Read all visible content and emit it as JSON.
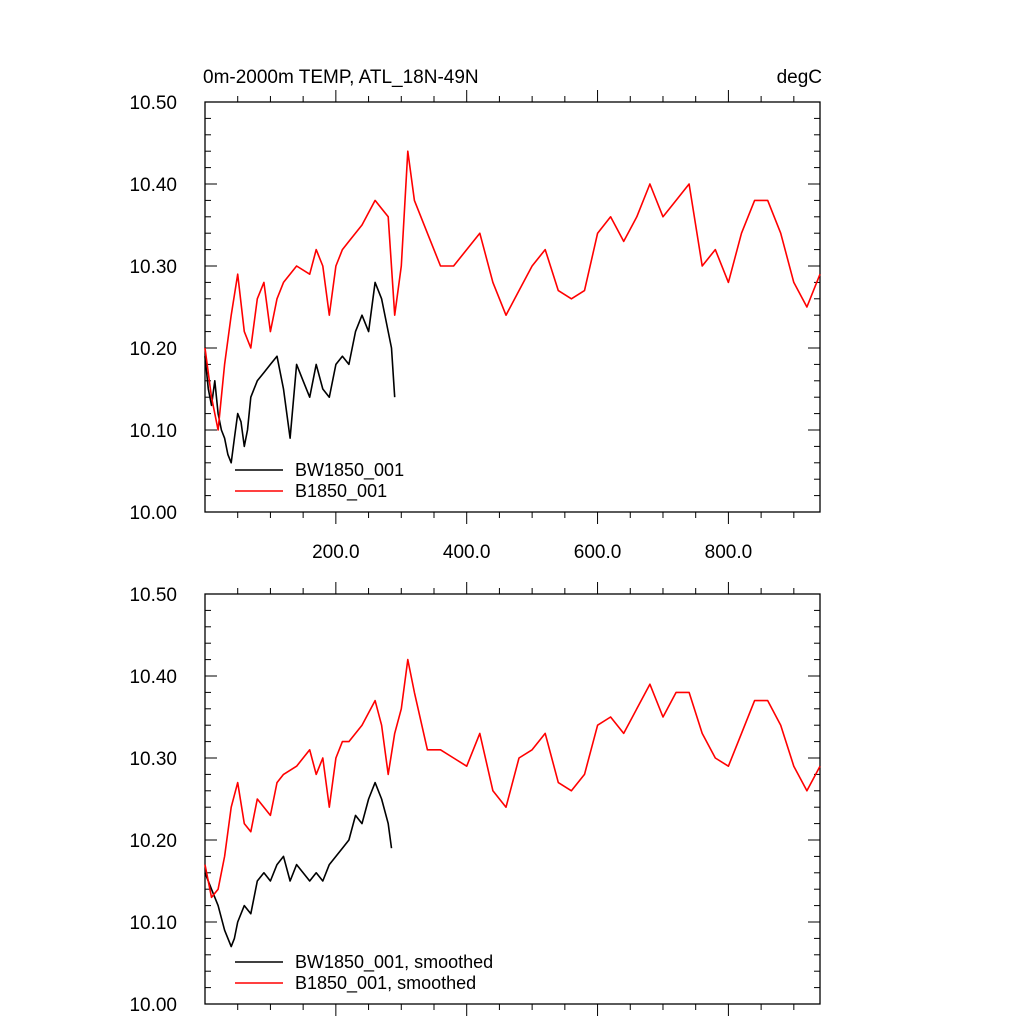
{
  "chart_data": [
    {
      "type": "line",
      "title": "0m-2000m TEMP, ATL_18N-49N",
      "units": "degC",
      "xlim": [
        0,
        940
      ],
      "ylim": [
        10.0,
        10.5
      ],
      "xticks": [
        200,
        400,
        600,
        800
      ],
      "xtick_labels": [
        "200.0",
        "400.0",
        "600.0",
        "800.0"
      ],
      "yticks": [
        10.0,
        10.1,
        10.2,
        10.3,
        10.4,
        10.5
      ],
      "ytick_labels": [
        "10.00",
        "10.10",
        "10.20",
        "10.30",
        "10.40",
        "10.50"
      ],
      "legend_position": "bottom-left",
      "series": [
        {
          "name": "BW1850_001",
          "color": "#000000",
          "x": [
            0,
            5,
            10,
            15,
            20,
            25,
            30,
            35,
            40,
            45,
            50,
            55,
            60,
            65,
            70,
            80,
            90,
            100,
            110,
            120,
            130,
            140,
            150,
            160,
            170,
            180,
            190,
            200,
            210,
            220,
            230,
            240,
            250,
            260,
            270,
            280,
            285,
            290
          ],
          "values": [
            10.19,
            10.15,
            10.13,
            10.16,
            10.12,
            10.1,
            10.09,
            10.07,
            10.06,
            10.09,
            10.12,
            10.11,
            10.08,
            10.1,
            10.14,
            10.16,
            10.17,
            10.18,
            10.19,
            10.15,
            10.09,
            10.18,
            10.16,
            10.14,
            10.18,
            10.15,
            10.14,
            10.18,
            10.19,
            10.18,
            10.22,
            10.24,
            10.22,
            10.28,
            10.26,
            10.22,
            10.2,
            10.14
          ]
        },
        {
          "name": "B1850_001",
          "color": "#ff0000",
          "x": [
            0,
            10,
            20,
            30,
            40,
            50,
            60,
            70,
            80,
            90,
            100,
            110,
            120,
            140,
            160,
            170,
            180,
            190,
            200,
            210,
            220,
            240,
            260,
            280,
            290,
            300,
            310,
            320,
            340,
            360,
            380,
            400,
            420,
            440,
            460,
            480,
            500,
            520,
            540,
            560,
            580,
            600,
            620,
            640,
            660,
            680,
            700,
            720,
            740,
            760,
            780,
            800,
            820,
            840,
            860,
            880,
            900,
            920,
            940
          ],
          "values": [
            10.2,
            10.14,
            10.1,
            10.18,
            10.24,
            10.29,
            10.22,
            10.2,
            10.26,
            10.28,
            10.22,
            10.26,
            10.28,
            10.3,
            10.29,
            10.32,
            10.3,
            10.24,
            10.3,
            10.32,
            10.33,
            10.35,
            10.38,
            10.36,
            10.24,
            10.3,
            10.44,
            10.38,
            10.34,
            10.3,
            10.3,
            10.32,
            10.34,
            10.28,
            10.24,
            10.27,
            10.3,
            10.32,
            10.27,
            10.26,
            10.27,
            10.34,
            10.36,
            10.33,
            10.36,
            10.4,
            10.36,
            10.38,
            10.4,
            10.3,
            10.32,
            10.28,
            10.34,
            10.38,
            10.38,
            10.34,
            10.28,
            10.25,
            10.29
          ]
        }
      ]
    },
    {
      "type": "line",
      "xlim": [
        0,
        940
      ],
      "ylim": [
        10.0,
        10.5
      ],
      "yticks": [
        10.0,
        10.1,
        10.2,
        10.3,
        10.4,
        10.5
      ],
      "ytick_labels": [
        "10.00",
        "10.10",
        "10.20",
        "10.30",
        "10.40",
        "10.50"
      ],
      "legend_position": "bottom-left",
      "series": [
        {
          "name": "BW1850_001, smoothed",
          "color": "#000000",
          "x": [
            0,
            10,
            20,
            30,
            40,
            45,
            50,
            60,
            70,
            80,
            90,
            100,
            110,
            120,
            130,
            140,
            150,
            160,
            170,
            180,
            190,
            200,
            210,
            220,
            230,
            240,
            250,
            260,
            270,
            280,
            285
          ],
          "values": [
            10.16,
            10.14,
            10.12,
            10.09,
            10.07,
            10.08,
            10.1,
            10.12,
            10.11,
            10.15,
            10.16,
            10.15,
            10.17,
            10.18,
            10.15,
            10.17,
            10.16,
            10.15,
            10.16,
            10.15,
            10.17,
            10.18,
            10.19,
            10.2,
            10.23,
            10.22,
            10.25,
            10.27,
            10.25,
            10.22,
            10.19
          ]
        },
        {
          "name": "B1850_001, smoothed",
          "color": "#ff0000",
          "x": [
            0,
            10,
            20,
            30,
            40,
            50,
            60,
            70,
            80,
            90,
            100,
            110,
            120,
            140,
            160,
            170,
            180,
            190,
            200,
            210,
            220,
            240,
            260,
            270,
            280,
            290,
            300,
            310,
            320,
            340,
            360,
            380,
            400,
            420,
            440,
            460,
            480,
            500,
            520,
            540,
            560,
            580,
            600,
            620,
            640,
            660,
            680,
            700,
            720,
            740,
            760,
            780,
            800,
            820,
            840,
            860,
            880,
            900,
            920,
            940
          ],
          "values": [
            10.17,
            10.13,
            10.14,
            10.18,
            10.24,
            10.27,
            10.22,
            10.21,
            10.25,
            10.24,
            10.23,
            10.27,
            10.28,
            10.29,
            10.31,
            10.28,
            10.3,
            10.24,
            10.3,
            10.32,
            10.32,
            10.34,
            10.37,
            10.34,
            10.28,
            10.33,
            10.36,
            10.42,
            10.38,
            10.31,
            10.31,
            10.3,
            10.29,
            10.33,
            10.26,
            10.24,
            10.3,
            10.31,
            10.33,
            10.27,
            10.26,
            10.28,
            10.34,
            10.35,
            10.33,
            10.36,
            10.39,
            10.35,
            10.38,
            10.38,
            10.33,
            10.3,
            10.29,
            10.33,
            10.37,
            10.37,
            10.34,
            10.29,
            10.26,
            10.29
          ]
        }
      ]
    }
  ]
}
